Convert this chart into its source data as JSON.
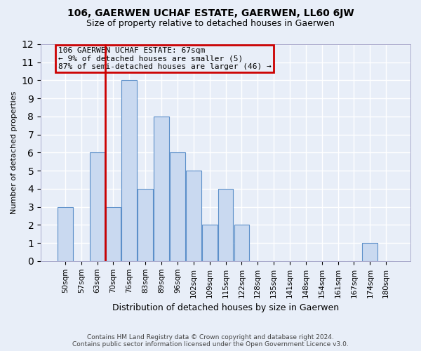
{
  "title": "106, GAERWEN UCHAF ESTATE, GAERWEN, LL60 6JW",
  "subtitle": "Size of property relative to detached houses in Gaerwen",
  "xlabel": "Distribution of detached houses by size in Gaerwen",
  "ylabel": "Number of detached properties",
  "bins": [
    "50sqm",
    "57sqm",
    "63sqm",
    "70sqm",
    "76sqm",
    "83sqm",
    "89sqm",
    "96sqm",
    "102sqm",
    "109sqm",
    "115sqm",
    "122sqm",
    "128sqm",
    "135sqm",
    "141sqm",
    "148sqm",
    "154sqm",
    "161sqm",
    "167sqm",
    "174sqm",
    "180sqm"
  ],
  "values": [
    3,
    0,
    6,
    3,
    10,
    4,
    8,
    6,
    5,
    2,
    4,
    2,
    0,
    0,
    0,
    0,
    0,
    0,
    0,
    1,
    0
  ],
  "bar_color": "#c9d9f0",
  "bar_edge_color": "#5b8fc9",
  "highlight_bin_index": 2,
  "highlight_edge_color": "#cc0000",
  "annotation_text": "106 GAERWEN UCHAF ESTATE: 67sqm\n← 9% of detached houses are smaller (5)\n87% of semi-detached houses are larger (46) →",
  "annotation_box_edge": "#cc0000",
  "footer_text": "Contains HM Land Registry data © Crown copyright and database right 2024.\nContains public sector information licensed under the Open Government Licence v3.0.",
  "ylim": [
    0,
    12
  ],
  "background_color": "#e8eef8",
  "grid_color": "#ffffff",
  "vline_x": 2.5
}
